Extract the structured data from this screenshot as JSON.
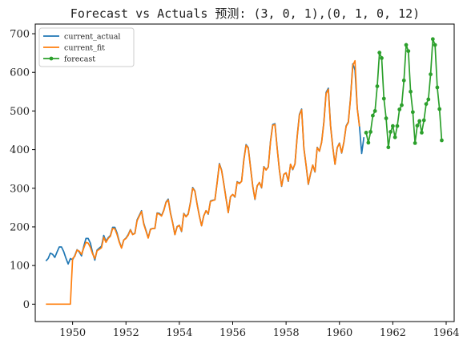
{
  "chart_data": {
    "type": "line",
    "title": "Forecast vs Actuals 预测: (3, 0, 1),(0, 1, 0, 12)",
    "xlabel": "",
    "ylabel": "",
    "xlim": [
      1948.6,
      1964.3
    ],
    "ylim": [
      -45,
      725
    ],
    "xticks": [
      1950,
      1952,
      1954,
      1956,
      1958,
      1960,
      1962,
      1964
    ],
    "xtick_labels": [
      "1950",
      "1952",
      "1954",
      "1956",
      "1958",
      "1960",
      "1962",
      "1964"
    ],
    "yticks": [
      0,
      100,
      200,
      300,
      400,
      500,
      600,
      700
    ],
    "ytick_labels": [
      "0",
      "100",
      "200",
      "300",
      "400",
      "500",
      "600",
      "700"
    ],
    "grid": false,
    "legend_position": "top-left",
    "series": [
      {
        "name": "current_actual",
        "color": "#1f77b4",
        "marker": "none",
        "start_year": 1949,
        "step": 0.0833333,
        "values": [
          112,
          118,
          132,
          129,
          121,
          135,
          148,
          148,
          136,
          119,
          104,
          118,
          115,
          126,
          141,
          135,
          125,
          149,
          170,
          170,
          158,
          133,
          114,
          140,
          145,
          150,
          178,
          163,
          172,
          178,
          199,
          199,
          184,
          162,
          146,
          166,
          171,
          180,
          193,
          181,
          183,
          218,
          230,
          242,
          209,
          191,
          172,
          194,
          196,
          196,
          236,
          235,
          229,
          243,
          264,
          272,
          237,
          211,
          180,
          201,
          204,
          188,
          235,
          227,
          234,
          264,
          302,
          293,
          259,
          229,
          203,
          229,
          242,
          233,
          267,
          269,
          270,
          315,
          364,
          347,
          312,
          274,
          237,
          278,
          284,
          277,
          317,
          313,
          318,
          374,
          413,
          405,
          355,
          306,
          271,
          306,
          315,
          301,
          356,
          348,
          355,
          422,
          465,
          467,
          404,
          347,
          305,
          336,
          340,
          318,
          362,
          348,
          363,
          435,
          491,
          505,
          404,
          359,
          310,
          337,
          360,
          342,
          406,
          396,
          420,
          472,
          548,
          559,
          463,
          407,
          362,
          405,
          417,
          391,
          419,
          461,
          472,
          535,
          622,
          606,
          508,
          461,
          390,
          432
        ]
      },
      {
        "name": "current_fit",
        "color": "#ff7f0e",
        "marker": "none",
        "start_year": 1949,
        "step": 0.0833333,
        "values": [
          0,
          0,
          0,
          0,
          0,
          0,
          0,
          0,
          0,
          0,
          0,
          0,
          118,
          124,
          140,
          137,
          129,
          145,
          160,
          158,
          147,
          130,
          118,
          138,
          142,
          146,
          173,
          160,
          170,
          176,
          196,
          195,
          180,
          160,
          145,
          166,
          170,
          178,
          192,
          180,
          183,
          216,
          228,
          240,
          207,
          189,
          171,
          193,
          196,
          196,
          235,
          233,
          228,
          242,
          263,
          270,
          235,
          210,
          180,
          200,
          204,
          189,
          234,
          226,
          233,
          263,
          300,
          292,
          258,
          228,
          203,
          229,
          242,
          234,
          266,
          268,
          270,
          314,
          362,
          346,
          311,
          273,
          237,
          278,
          284,
          278,
          316,
          312,
          318,
          372,
          411,
          404,
          354,
          306,
          272,
          306,
          315,
          302,
          355,
          347,
          355,
          420,
          463,
          465,
          403,
          347,
          306,
          336,
          340,
          319,
          362,
          349,
          363,
          433,
          489,
          503,
          404,
          360,
          311,
          338,
          360,
          343,
          405,
          396,
          419,
          470,
          545,
          556,
          461,
          406,
          362,
          405,
          416,
          392,
          420,
          460,
          470,
          533,
          618,
          630,
          507,
          460
        ]
      },
      {
        "name": "forecast",
        "color": "#2ca02c",
        "marker": "circle",
        "start_year": 1961,
        "step": 0.0833333,
        "values": [
          444,
          418,
          446,
          488,
          500,
          564,
          651,
          637,
          532,
          481,
          406,
          446,
          461,
          432,
          461,
          504,
          515,
          579,
          671,
          655,
          550,
          497,
          417,
          462,
          474,
          444,
          476,
          518,
          530,
          595,
          686,
          671,
          561,
          505,
          424
        ]
      }
    ]
  }
}
